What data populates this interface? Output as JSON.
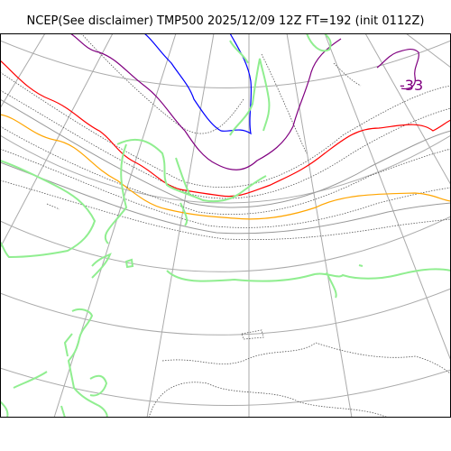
{
  "title": "NCEP(See disclaimer) TMP500 2025/12/09 12Z FT=192 (init 0112Z)",
  "contour_labels": [
    {
      "text": "-33",
      "color": "#800080"
    }
  ],
  "colors": {
    "graticule": "#aaaaaa",
    "coastline": "#90ee90",
    "isotherm_dotted": "#555555",
    "isotherm_gray": "#999999",
    "isotherm_orange": "#ffa500",
    "isotherm_red": "#ff0000",
    "isotherm_purple": "#800080",
    "isotherm_blue": "#0000ff"
  }
}
